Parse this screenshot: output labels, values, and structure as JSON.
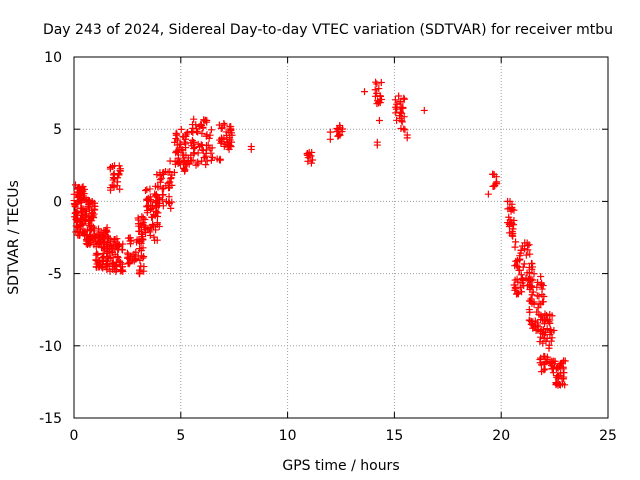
{
  "chart_data": {
    "type": "scatter",
    "title": "Day 243 of 2024, Sidereal Day-to-day VTEC variation (SDTVAR) for receiver mtbu",
    "xlabel": "GPS time / hours",
    "ylabel": "SDTVAR / TECUs",
    "xlim": [
      0,
      25
    ],
    "ylim": [
      -15,
      10
    ],
    "xticks": [
      0,
      5,
      10,
      15,
      20,
      25
    ],
    "yticks": [
      -15,
      -10,
      -5,
      0,
      5,
      10
    ],
    "grid": true,
    "marker": "+",
    "color": "#ff0000",
    "clusters": [
      {
        "x0": 0.0,
        "x1": 0.5,
        "y0": -2.5,
        "y1": 1.2,
        "n": 90
      },
      {
        "x0": 0.5,
        "x1": 1.0,
        "y0": -3.0,
        "y1": 0.2,
        "n": 80
      },
      {
        "x0": 1.0,
        "x1": 1.6,
        "y0": -4.8,
        "y1": -1.8,
        "n": 80
      },
      {
        "x0": 1.6,
        "x1": 2.3,
        "y0": -4.9,
        "y1": -2.5,
        "n": 60
      },
      {
        "x0": 1.7,
        "x1": 2.2,
        "y0": 0.7,
        "y1": 2.5,
        "n": 25
      },
      {
        "x0": 2.5,
        "x1": 3.0,
        "y0": -4.5,
        "y1": -2.5,
        "n": 25
      },
      {
        "x0": 3.0,
        "x1": 3.3,
        "y0": -5.2,
        "y1": -1.0,
        "n": 40
      },
      {
        "x0": 3.3,
        "x1": 4.0,
        "y0": -2.7,
        "y1": 1.0,
        "n": 55
      },
      {
        "x0": 3.8,
        "x1": 4.6,
        "y0": -0.5,
        "y1": 2.1,
        "n": 40
      },
      {
        "x0": 4.7,
        "x1": 5.5,
        "y0": 2.5,
        "y1": 5.0,
        "n": 50
      },
      {
        "x0": 5.5,
        "x1": 6.5,
        "y0": 2.5,
        "y1": 5.7,
        "n": 60
      },
      {
        "x0": 6.8,
        "x1": 7.4,
        "y0": 3.6,
        "y1": 5.4,
        "n": 35
      },
      {
        "x0": 5.0,
        "x1": 5.2,
        "y0": 2.0,
        "y1": 2.3,
        "n": 4
      },
      {
        "x0": 6.7,
        "x1": 6.9,
        "y0": 2.8,
        "y1": 3.0,
        "n": 4
      },
      {
        "x0": 10.9,
        "x1": 11.2,
        "y0": 2.4,
        "y1": 3.5,
        "n": 12
      },
      {
        "x0": 12.3,
        "x1": 12.6,
        "y0": 4.5,
        "y1": 5.6,
        "n": 12
      },
      {
        "x0": 14.1,
        "x1": 14.4,
        "y0": 6.7,
        "y1": 8.5,
        "n": 15
      },
      {
        "x0": 15.0,
        "x1": 15.5,
        "y0": 4.8,
        "y1": 7.3,
        "n": 25
      },
      {
        "x0": 19.6,
        "x1": 19.8,
        "y0": 1.0,
        "y1": 2.0,
        "n": 10
      },
      {
        "x0": 20.3,
        "x1": 20.6,
        "y0": -2.5,
        "y1": 0.0,
        "n": 25
      },
      {
        "x0": 20.6,
        "x1": 21.5,
        "y0": -6.5,
        "y1": -2.8,
        "n": 60
      },
      {
        "x0": 21.3,
        "x1": 22.0,
        "y0": -9.0,
        "y1": -5.0,
        "n": 55
      },
      {
        "x0": 21.8,
        "x1": 22.5,
        "y0": -11.8,
        "y1": -7.5,
        "n": 55
      },
      {
        "x0": 22.3,
        "x1": 23.0,
        "y0": -12.9,
        "y1": -11.0,
        "n": 40
      }
    ],
    "points": [
      {
        "x": 8.3,
        "y": 3.8
      },
      {
        "x": 8.3,
        "y": 3.6
      },
      {
        "x": 4.2,
        "y": 2.0
      },
      {
        "x": 4.1,
        "y": 1.6
      },
      {
        "x": 4.5,
        "y": 2.8
      },
      {
        "x": 4.7,
        "y": 2.0
      },
      {
        "x": 12.0,
        "y": 4.8
      },
      {
        "x": 12.0,
        "y": 4.3
      },
      {
        "x": 13.6,
        "y": 7.6
      },
      {
        "x": 14.3,
        "y": 5.6
      },
      {
        "x": 14.2,
        "y": 4.1
      },
      {
        "x": 14.2,
        "y": 3.9
      },
      {
        "x": 15.6,
        "y": 4.6
      },
      {
        "x": 15.6,
        "y": 4.4
      },
      {
        "x": 16.4,
        "y": 6.3
      },
      {
        "x": 19.4,
        "y": 0.5
      },
      {
        "x": 20.3,
        "y": 0.0
      },
      {
        "x": 15.2,
        "y": 7.3
      }
    ]
  }
}
